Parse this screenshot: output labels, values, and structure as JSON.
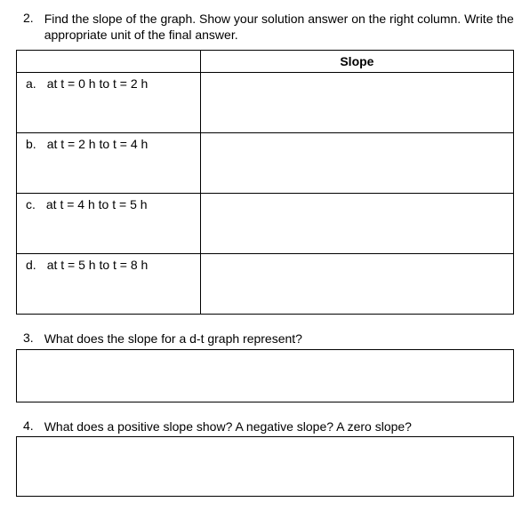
{
  "q2": {
    "number": "2.",
    "text": "Find the slope of the graph. Show your solution answer on the right column. Write the appropriate unit of the final answer.",
    "table": {
      "header_left": "",
      "header_right": "Slope",
      "rows": [
        {
          "letter": "a.",
          "label": "at   t = 0 h to t = 2 h",
          "answer": ""
        },
        {
          "letter": "b.",
          "label": "at   t = 2 h to t = 4 h",
          "answer": ""
        },
        {
          "letter": "c.",
          "label": "at   t = 4 h to t = 5 h",
          "answer": ""
        },
        {
          "letter": "d.",
          "label": "at   t = 5 h to t = 8 h",
          "answer": ""
        }
      ]
    }
  },
  "q3": {
    "number": "3.",
    "text": "What does the slope for a d-t graph represent?",
    "answer": ""
  },
  "q4": {
    "number": "4.",
    "text": "What does a positive slope show? A negative slope? A zero slope?",
    "answer": ""
  },
  "colors": {
    "text": "#000000",
    "border": "#000000",
    "background": "#ffffff"
  }
}
